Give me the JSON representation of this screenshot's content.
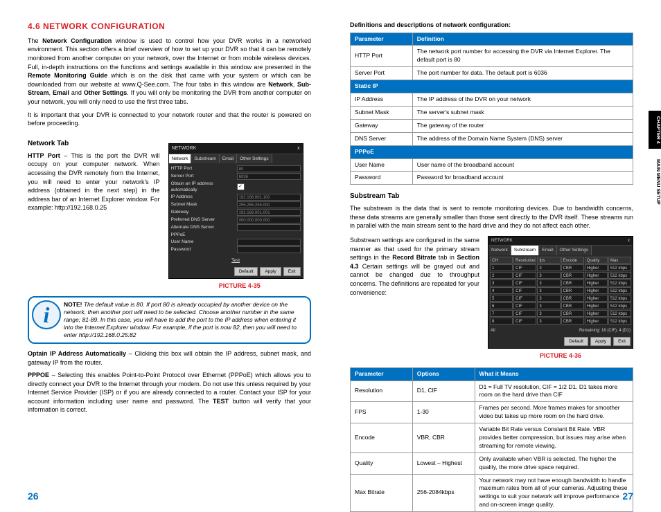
{
  "leftPage": {
    "title": "4.6 NETWORK CONFIGURATION",
    "intro1_prefix": "The ",
    "intro1_bold1": "Network Configuration",
    "intro1_mid": " window is used to control how your DVR works in a networked environment. This section offers a brief overview of how to set up your DVR so that it can be remotely monitored from another computer on your network, over the Internet or from mobile wireless devices. Full, in-depth instructions on the functions and settings available in this window are presented in the ",
    "intro1_bold2": "Remote Monitoring Guide",
    "intro1_tail": " which is on the disk that came with your system or which can be downloaded from our website at www.Q-See.com. The four tabs in this window are ",
    "intro1_b3": "Network",
    "intro1_s3": ", ",
    "intro1_b4": "Sub-Stream",
    "intro1_s4": ", ",
    "intro1_b5": "Email",
    "intro1_s5": " and ",
    "intro1_b6": "Other Settings",
    "intro1_end": ". If you will only be monitoring the DVR from another computer on your network, you will only need to use the first three tabs.",
    "intro2": "It is important that your DVR is connected to your network router and that the router is powered on before proceeding.",
    "networkTab": "Network Tab",
    "httpPort_label": "HTTP Port",
    "httpPort_desc": " – This is the port the DVR will occupy on your computer network. When accessing the DVR remotely from the Internet, you will need to enter your network's IP address (obtained in the next step) in the address bar of an Internet Explorer window. For example: http://192.168.0.25",
    "picture35": "PICTURE 4-35",
    "note_label": "NOTE!",
    "note_body": " The default value is 80. If port 80 is already occupied by another device on the network, then another port will need to be selected. Choose another number in the same range; 81-89. In this case, you will have to add the port to the IP address when entering it into the Internet Explorer window. For example, if the port is now 82, then you will need to enter http://192.168.0.25:82",
    "obtain_label": "Optain IP Address Automatically",
    "obtain_desc": " – Clicking this box will obtain the IP address, subnet mask, and gateway IP from the router.",
    "pppoe_label": "PPPOE",
    "pppoe_desc": " – Selecting this enables Point-to-Point Protocol over Ethernet (PPPoE) which allows you to directly connect your DVR to the Internet through your modem. Do not use this unless required by your Internet Service Provider (ISP) or if you are already connected to a router. Contact your ISP for your account information including user name and password. The ",
    "pppoe_bold": "TEST",
    "pppoe_end": " button will verify that your information is correct.",
    "dvr": {
      "title": "NETWORK",
      "close": "x",
      "tabs": [
        "Network",
        "Substream",
        "Email",
        "Other Settings"
      ],
      "rows": [
        {
          "label": "HTTP Port",
          "val": "80"
        },
        {
          "label": "Server Port",
          "val": "6036"
        },
        {
          "label": "Obtain an IP address automatically",
          "check": true
        },
        {
          "label": "IP Address",
          "val": "192.168.001.100"
        },
        {
          "label": "Subnet Mask",
          "val": "255.255.255.000"
        },
        {
          "label": "Gateway",
          "val": "192.168.001.001"
        },
        {
          "label": "Preferred DNS Server",
          "val": "000.000.000.000"
        },
        {
          "label": "Alternate DNS Server",
          "val": ""
        },
        {
          "label": "PPPoE",
          "check": false,
          "noval": true
        },
        {
          "label": "User Name",
          "val": ""
        },
        {
          "label": "Password",
          "val": ""
        }
      ],
      "test": "Test",
      "buttons": [
        "Default",
        "Apply",
        "Exit"
      ]
    },
    "pageNo": "26"
  },
  "rightPage": {
    "defTitle": "Definitions and descriptions of network configuration:",
    "table1": {
      "headers": [
        "Parameter",
        "Definition"
      ],
      "rows": [
        {
          "cells": [
            "HTTP Port",
            "The network port number for accessing the DVR via Internet Explorer. The default port is 80"
          ]
        },
        {
          "cells": [
            "Server Port",
            "The port number for data. The default port is 6036"
          ]
        },
        {
          "section": "Static IP"
        },
        {
          "cells": [
            "IP Address",
            "The IP address of the DVR on your network"
          ]
        },
        {
          "cells": [
            "Subnet Mask",
            "The server's subnet mask"
          ]
        },
        {
          "cells": [
            "Gateway",
            "The gateway of the router"
          ]
        },
        {
          "cells": [
            "DNS Server",
            "The address of the Domain Name System (DNS) server"
          ]
        },
        {
          "section": "PPPoE"
        },
        {
          "cells": [
            "User Name",
            "User name of the broadband account"
          ]
        },
        {
          "cells": [
            "Password",
            "Password for broadband account"
          ]
        }
      ]
    },
    "substreamTab": "Substream Tab",
    "subPara": "The substream is the data that is sent to remote monitoring devices. Due to bandwidth concerns, these data streams are generally smaller than those sent directly to the DVR itself. These streams run in parallel with the main stream sent to the hard drive and they do not affect each other.",
    "subPara2_pre": "Substream settings are configured in the same manner as that used for the primary stream settings in the ",
    "subPara2_b1": "Record Bitrate",
    "subPara2_mid": " tab in ",
    "subPara2_b2": "Section 4.3",
    "subPara2_end": " Certain settings will be grayed out and cannot be changed due to throughput concerns. The definitions are repeated for your convenience:",
    "picture36": "PICTURE 4-36",
    "subwin": {
      "title": "NETWORK",
      "tabs": [
        "Network",
        "Substream",
        "Email",
        "Other Settings"
      ],
      "head": [
        "CH",
        "Resolution",
        "fps",
        "Encode",
        "Quality",
        "Max Bitrate"
      ],
      "rows": [
        [
          "1",
          "CIF",
          "3",
          "CBR",
          "Higher",
          "512 kbps"
        ],
        [
          "2",
          "CIF",
          "3",
          "CBR",
          "Higher",
          "512 kbps"
        ],
        [
          "3",
          "CIF",
          "3",
          "CBR",
          "Higher",
          "512 kbps"
        ],
        [
          "4",
          "CIF",
          "3",
          "CBR",
          "Higher",
          "512 kbps"
        ],
        [
          "5",
          "CIF",
          "3",
          "CBR",
          "Higher",
          "512 kbps"
        ],
        [
          "6",
          "CIF",
          "3",
          "CBR",
          "Higher",
          "512 kbps"
        ],
        [
          "7",
          "CIF",
          "3",
          "CBR",
          "Higher",
          "512 kbps"
        ],
        [
          "8",
          "CIF",
          "3",
          "CBR",
          "Higher",
          "512 kbps"
        ]
      ],
      "foot_left": "All",
      "foot_right": "Remaining: 16 (CIF), 4 (D1)"
    },
    "table2": {
      "headers": [
        "Parameter",
        "Options",
        "What it Means"
      ],
      "rows": [
        [
          "Resolution",
          "D1, CIF",
          "D1 = Full TV resolution, CIF = 1/2 D1. D1 takes more room on the hard drive than CIF"
        ],
        [
          "FPS",
          "1-30",
          "Frames per second. More frames makes for smoother video but takes up more room on the hard drive."
        ],
        [
          "Encode",
          "VBR, CBR",
          "Variable Bit Rate versus Constant Bit Rate. VBR provides better compression, but issues may arise when streaming for remote viewing."
        ],
        [
          "Quality",
          "Lowest – Highest",
          "Only available when VBR is selected. The higher the quality, the more drive space required."
        ],
        [
          "Max Bitrate",
          "256-2084kbps",
          " Your network may not have enough bandwidth to handle maximum rates from all of your cameras. Adjusting these settings to suit your network will improve performance and on-screen image quality."
        ]
      ],
      "col_widths": [
        "22%",
        "22%",
        "56%"
      ]
    },
    "pageNo": "27",
    "sideTab": {
      "dark": "CHAPTER 4",
      "light": "MAIN MENU SETUP"
    }
  },
  "colors": {
    "red": "#D82027",
    "blue": "#0070c0",
    "tableHeader": "#0070c0"
  }
}
